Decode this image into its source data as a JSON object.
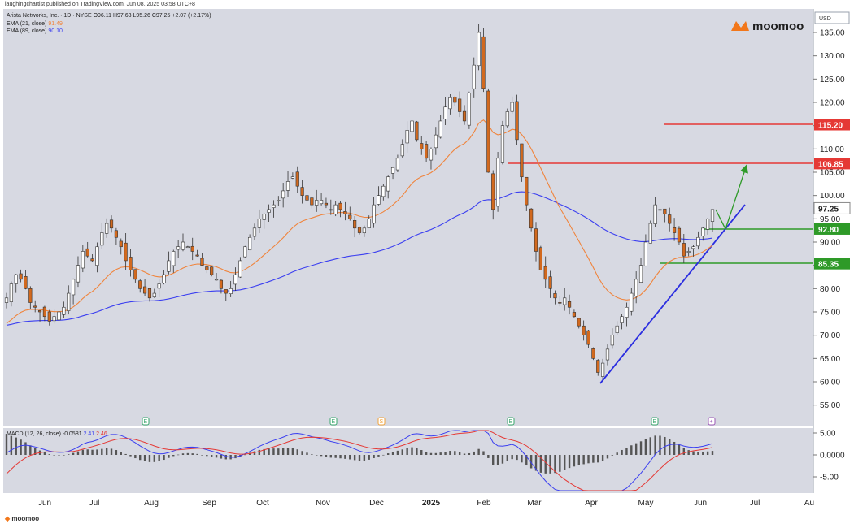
{
  "header_text": "laughingchartist published on TradingView.com, Jun 08, 2025 03:58 UTC+8",
  "legend": {
    "symbol_line": "Arista Networks, Inc. · 1D · NYSE  O96.11 H97.63 L95.26 C97.25 +2.07 (+2.17%)",
    "ema21_label": "EMA (21, close)",
    "ema21_value": "91.49",
    "ema89_label": "EMA (89, close)",
    "ema89_value": "90.10"
  },
  "brand": {
    "logo_text": "moomoo",
    "footer_text": "moomoo"
  },
  "currency": "USD",
  "macd_legend": {
    "label": "MACD (12, 26, close)",
    "hist": "-0.0581",
    "macd": "2.41",
    "signal": "2.46"
  },
  "colors": {
    "background": "#d7d9e2",
    "up": "#ffffff",
    "down": "#d2691e",
    "wick": "#333333",
    "ema21": "#f0843c",
    "ema89": "#3b3ff0",
    "resistance": "#e53935",
    "support": "#2e9a28",
    "trendline": "#2a2de0",
    "arrow": "#2e9a28",
    "brand": "#f2771a"
  },
  "chart_data": {
    "type": "candlestick",
    "ylim": [
      50,
      138
    ],
    "y_ticks": [
      "135.00",
      "130.00",
      "125.00",
      "120.00",
      "115.00",
      "110.00",
      "105.00",
      "100.00",
      "95.00",
      "90.00",
      "85.00",
      "80.00",
      "75.00",
      "70.00",
      "65.00",
      "60.00",
      "55.00"
    ],
    "x_labels": [
      "Jun",
      "Jul",
      "Aug",
      "Sep",
      "Oct",
      "Nov",
      "Dec",
      "2025",
      "Feb",
      "Mar",
      "Apr",
      "May",
      "Jun",
      "Jul",
      "Au"
    ],
    "series_close": [
      78,
      81,
      83,
      82,
      80,
      77,
      76,
      75,
      74,
      73,
      74,
      75,
      76,
      79,
      82,
      85,
      88,
      87,
      86,
      89,
      92,
      94,
      93,
      91,
      89,
      86,
      84,
      82,
      80,
      79,
      78,
      79,
      81,
      83,
      86,
      88,
      89,
      90,
      89,
      88,
      87,
      85,
      84,
      83,
      82,
      80,
      79,
      80,
      83,
      86,
      89,
      91,
      93,
      95,
      96,
      97,
      98,
      99,
      101,
      103,
      104,
      102,
      100,
      99,
      98,
      99,
      99,
      98,
      97,
      98,
      97,
      96,
      95,
      93,
      92,
      93,
      95,
      98,
      100,
      102,
      104,
      106,
      108,
      111,
      114,
      116,
      112,
      110,
      108,
      110,
      113,
      116,
      119,
      121,
      120,
      118,
      116,
      122,
      128,
      135,
      123,
      105,
      97,
      108,
      115,
      118,
      120,
      112,
      104,
      98,
      93,
      88,
      84,
      82,
      80,
      78,
      77,
      78,
      76,
      74,
      72,
      70,
      68,
      65,
      62,
      64,
      67,
      70,
      72,
      74,
      76,
      79,
      82,
      85,
      90,
      94,
      98,
      97,
      96,
      94,
      92,
      90,
      87,
      88,
      89,
      91,
      93,
      95,
      97
    ],
    "levels": [
      {
        "label": "115.20",
        "value": 115.2
      },
      {
        "label": "106.85",
        "value": 106.85
      },
      {
        "label": "97.25",
        "value": 97.25
      },
      {
        "label": "92.80",
        "value": 92.8
      },
      {
        "label": "85.35",
        "value": 85.35
      }
    ],
    "earnings_markers": [
      "E",
      "E",
      "S",
      "E",
      "E",
      "+"
    ],
    "macd": {
      "ylim": [
        -8,
        7
      ],
      "y_ticks": [
        "5.00",
        "0.0000",
        "-5.00"
      ]
    }
  }
}
